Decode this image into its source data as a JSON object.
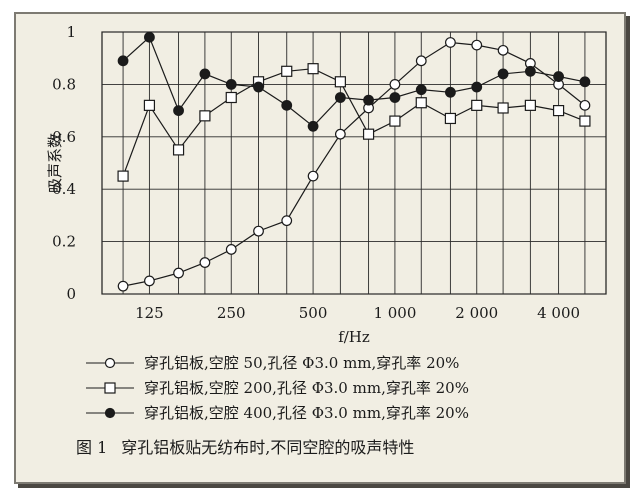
{
  "chart_data": {
    "type": "line",
    "title": "",
    "xlabel": "f/Hz",
    "ylabel": "吸声系数",
    "x": [
      100,
      125,
      160,
      200,
      250,
      315,
      400,
      500,
      630,
      800,
      1000,
      1250,
      1600,
      2000,
      2500,
      3150,
      4000,
      5000
    ],
    "x_tick_labels": [
      "125",
      "250",
      "500",
      "1 000",
      "2 000",
      "4 000"
    ],
    "x_tick_values": [
      125,
      250,
      500,
      1000,
      2000,
      4000
    ],
    "x_scale": "log",
    "ylim": [
      0,
      1
    ],
    "y_ticks": [
      0,
      0.2,
      0.4,
      0.6,
      0.8,
      1
    ],
    "y_tick_labels": [
      "0",
      "0.2",
      "0.4",
      "0.6",
      "0.8",
      "1"
    ],
    "grid": true,
    "series": [
      {
        "name": "穿孔铝板,空腔 50,孔径 Φ3.0 mm,穿孔率 20%",
        "marker": "open-circle",
        "values": [
          0.03,
          0.05,
          0.08,
          0.12,
          0.17,
          0.24,
          0.28,
          0.45,
          0.61,
          0.71,
          0.8,
          0.89,
          0.96,
          0.95,
          0.93,
          0.88,
          0.8,
          0.72
        ]
      },
      {
        "name": "穿孔铝板,空腔 200,孔径 Φ3.0 mm,穿孔率 20%",
        "marker": "open-square",
        "values": [
          0.45,
          0.72,
          0.55,
          0.68,
          0.75,
          0.81,
          0.85,
          0.86,
          0.81,
          0.61,
          0.66,
          0.73,
          0.67,
          0.72,
          0.71,
          0.72,
          0.7,
          0.66
        ]
      },
      {
        "name": "穿孔铝板,空腔 400,孔径 Φ3.0 mm,穿孔率 20%",
        "marker": "filled-circle",
        "values": [
          0.89,
          0.98,
          0.7,
          0.84,
          0.8,
          0.79,
          0.72,
          0.64,
          0.75,
          0.74,
          0.75,
          0.78,
          0.77,
          0.79,
          0.84,
          0.85,
          0.83,
          0.81
        ]
      }
    ]
  },
  "caption": {
    "figure_number": "图 1",
    "text": "穿孔铝板贴无纺布时,不同空腔的吸声特性"
  },
  "colors": {
    "background": "#f1eee3",
    "ink": "#1b1b1b",
    "grid": "#2a2a2a"
  }
}
